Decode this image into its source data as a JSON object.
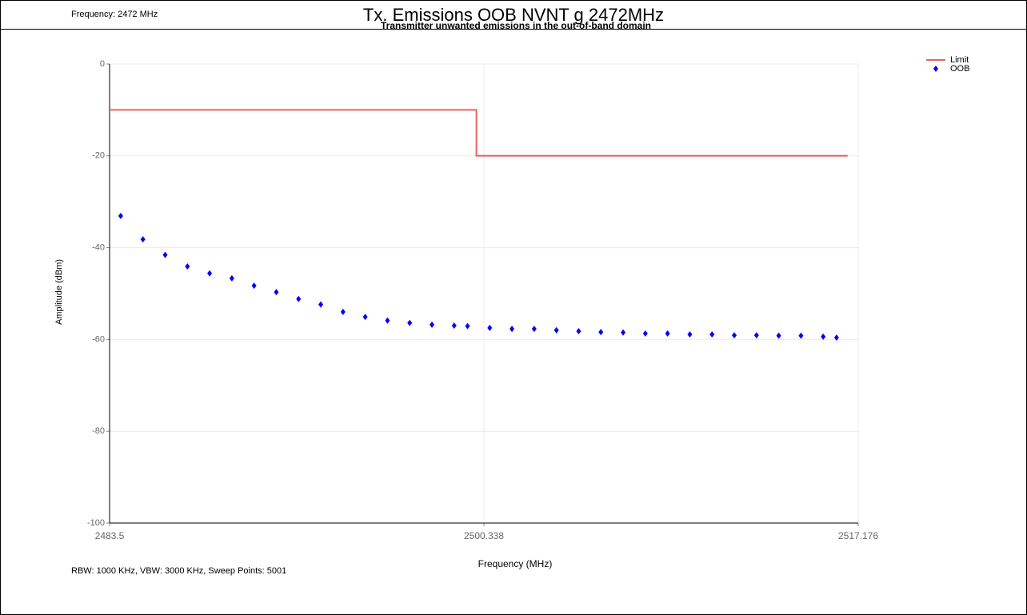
{
  "header": {
    "title": "Tx. Emissions OOB NVNT g 2472MHz"
  },
  "chart_data": {
    "type": "scatter",
    "title": "Transmitter unwanted emissions in the out-of-band domain",
    "annotations": [
      "Frequency: 2472 MHz",
      "RBW: 1000 KHz,  VBW: 3000 KHz,  Sweep Points: 5001"
    ],
    "x_label": "Frequency (MHz)",
    "y_label": "Amplitude (dBm)",
    "xlim": [
      2483.5,
      2517.176
    ],
    "ylim": [
      -100,
      0
    ],
    "xticks": [
      2483.5,
      2500.338,
      2517.176
    ],
    "yticks": [
      0,
      -20,
      -40,
      -60,
      -80,
      -100
    ],
    "grid": true,
    "legend": "right",
    "series": [
      {
        "name": "Limit",
        "color": "#f06060",
        "mode": "line",
        "x": [
          2483.5,
          2500,
          2500,
          2516.7
        ],
        "values": [
          -10,
          -10,
          -20,
          -20
        ]
      },
      {
        "name": "OOB",
        "color": "#0000ff",
        "mode": "markers",
        "x": [
          2484,
          2485,
          2486,
          2487,
          2488,
          2489,
          2490,
          2491,
          2492,
          2493,
          2494,
          2495,
          2496,
          2497,
          2498,
          2499,
          2499.6,
          2500.6,
          2501.6,
          2502.6,
          2503.6,
          2504.6,
          2505.6,
          2506.6,
          2507.6,
          2508.6,
          2509.6,
          2510.6,
          2511.6,
          2512.6,
          2513.6,
          2514.6,
          2515.6,
          2516.2
        ],
        "values": [
          -33.1,
          -38.2,
          -41.6,
          -44.1,
          -45.6,
          -46.7,
          -48.3,
          -49.7,
          -51.2,
          -52.4,
          -54.0,
          -55.1,
          -55.9,
          -56.4,
          -56.8,
          -57.0,
          -57.1,
          -57.5,
          -57.7,
          -57.7,
          -58.0,
          -58.2,
          -58.4,
          -58.5,
          -58.7,
          -58.7,
          -58.9,
          -58.9,
          -59.1,
          -59.1,
          -59.2,
          -59.2,
          -59.4,
          -59.6
        ]
      }
    ]
  }
}
